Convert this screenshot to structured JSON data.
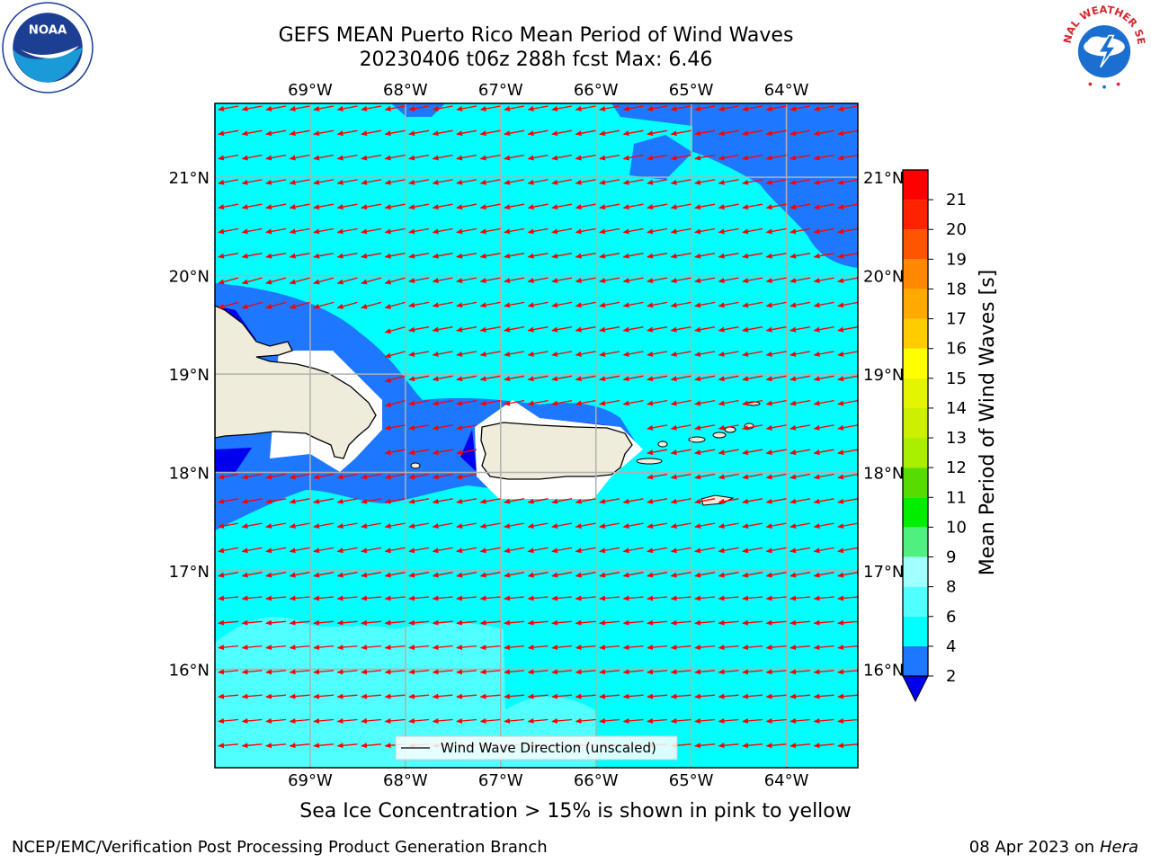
{
  "title": {
    "line1": "GEFS MEAN Puerto Rico Mean Period of Wind Waves",
    "line2": "20230406 t06z 288h fcst   Max: 6.46"
  },
  "map": {
    "lon_labels": [
      "69°W",
      "68°W",
      "67°W",
      "66°W",
      "65°W",
      "64°W"
    ],
    "lat_labels": [
      "21°N",
      "20°N",
      "19°N",
      "18°N",
      "17°N",
      "16°N"
    ],
    "lon_range": [
      -70.0,
      -63.25
    ],
    "lat_range": [
      15.0,
      21.75
    ],
    "legend_label": "Wind Wave Direction (unscaled)",
    "arrow_color": "#ff0000",
    "land_color": "#efecdc"
  },
  "colorbar": {
    "label": "Mean Period of Wind Waves [s]",
    "ticks": [
      "2",
      "4",
      "6",
      "8",
      "9",
      "10",
      "11",
      "12",
      "13",
      "14",
      "15",
      "16",
      "17",
      "18",
      "19",
      "20",
      "21"
    ],
    "levels": [
      {
        "color": "#0000ee"
      },
      {
        "color": "#1e78ff"
      },
      {
        "color": "#00ffff"
      },
      {
        "color": "#50ffff"
      },
      {
        "color": "#a0ffff"
      },
      {
        "color": "#50f080"
      },
      {
        "color": "#00ee00"
      },
      {
        "color": "#55dd00"
      },
      {
        "color": "#aaee00"
      },
      {
        "color": "#ccf000"
      },
      {
        "color": "#e5f500"
      },
      {
        "color": "#ffff00"
      },
      {
        "color": "#ffcc00"
      },
      {
        "color": "#ffaa00"
      },
      {
        "color": "#ff8800"
      },
      {
        "color": "#ff5500"
      },
      {
        "color": "#ff2200"
      },
      {
        "color": "#ff0000"
      }
    ]
  },
  "footnote": "Sea Ice Concentration > 15% is shown in pink to yellow",
  "credits": {
    "left": "NCEP/EMC/Verification Post Processing Product Generation Branch",
    "right_date": "08 Apr 2023 on",
    "right_host": "Hera"
  },
  "logos": {
    "noaa_text": "NOAA",
    "nws_text": "NATIONAL WEATHER SERVICE"
  }
}
